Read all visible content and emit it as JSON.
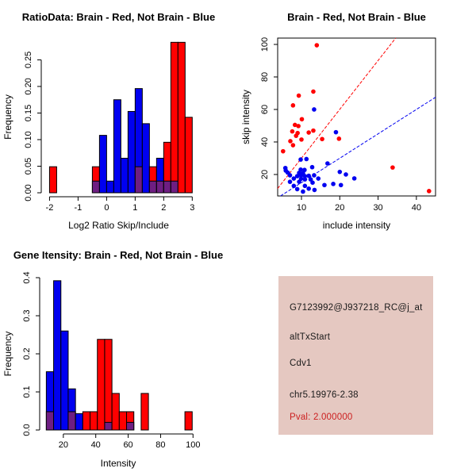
{
  "colors": {
    "red": "#FF0000",
    "blue": "#0000F0",
    "overlap_purple": "#6E1E82",
    "axis_black": "#000000",
    "info_box_bg": "#E5C8C1",
    "pval_red": "#CC2020"
  },
  "info_box": {
    "probe_id": "G7123992@J937218_RC@j_at",
    "event_type": "altTxStart",
    "gene": "Cdv1",
    "location": "chr5.19976-2.38",
    "pval_label": "Pval: 2.000000"
  },
  "chart_data": [
    {
      "type": "bar",
      "subtype": "overlaid-histogram",
      "title": "RatioData: Brain - Red, Not Brain - Blue",
      "xlabel": "Log2 Ratio Skip/Include",
      "ylabel": "Frequency",
      "xlim": [
        -2.29,
        3.13
      ],
      "ylim": [
        0,
        0.285
      ],
      "xticks": [
        -2,
        -1,
        0,
        1,
        2,
        3
      ],
      "xtick_labels": [
        "-2",
        "-1",
        "0",
        "1",
        "2",
        "3"
      ],
      "yticks": [
        0,
        0.05,
        0.1,
        0.15,
        0.2,
        0.25
      ],
      "ytick_labels": [
        "0.00",
        "0.05",
        "0.10",
        "0.15",
        "0.20",
        "0.25"
      ],
      "grid": false,
      "legend": "none (encoded in title: Brain=red, Not Brain=blue)",
      "bin_width": 0.25,
      "bars": [
        {
          "x0": -2.0,
          "x1": -1.75,
          "color": "red",
          "h": 0.049,
          "overlap": 0
        },
        {
          "x0": -0.5,
          "x1": -0.25,
          "color": "red",
          "h": 0.049,
          "overlap": 0.022
        },
        {
          "x0": -0.25,
          "x1": 0.0,
          "color": "blue",
          "h": 0.108,
          "overlap": 0
        },
        {
          "x0": 0.0,
          "x1": 0.25,
          "color": "blue",
          "h": 0.022,
          "overlap": 0
        },
        {
          "x0": 0.25,
          "x1": 0.5,
          "color": "blue",
          "h": 0.175,
          "overlap": 0
        },
        {
          "x0": 0.5,
          "x1": 0.75,
          "color": "blue",
          "h": 0.065,
          "overlap": 0
        },
        {
          "x0": 0.75,
          "x1": 1.0,
          "color": "blue",
          "h": 0.153,
          "overlap": 0
        },
        {
          "x0": 1.0,
          "x1": 1.25,
          "color": "blue",
          "h": 0.196,
          "overlap": 0.049
        },
        {
          "x0": 1.25,
          "x1": 1.5,
          "color": "blue",
          "h": 0.13,
          "overlap": 0
        },
        {
          "x0": 1.5,
          "x1": 1.75,
          "color": "red",
          "h": 0.049,
          "overlap": 0.022
        },
        {
          "x0": 1.75,
          "x1": 2.0,
          "color": "blue",
          "h": 0.065,
          "overlap": 0.022
        },
        {
          "x0": 2.0,
          "x1": 2.25,
          "color": "red",
          "h": 0.095,
          "overlap": 0.022
        },
        {
          "x0": 2.25,
          "x1": 2.5,
          "color": "red",
          "h": 0.283,
          "overlap": 0.022
        },
        {
          "x0": 2.5,
          "x1": 2.75,
          "color": "red",
          "h": 0.283,
          "overlap": 0
        },
        {
          "x0": 2.75,
          "x1": 3.0,
          "color": "red",
          "h": 0.142,
          "overlap": 0
        }
      ]
    },
    {
      "type": "scatter",
      "title": "Brain - Red, Not Brain - Blue",
      "xlabel": "include intensity",
      "ylabel": "skip intensity",
      "xlim": [
        3.79,
        45.0
      ],
      "ylim": [
        6.8,
        103.9
      ],
      "xticks": [
        10,
        20,
        30,
        40
      ],
      "xtick_labels": [
        "10",
        "20",
        "30",
        "40"
      ],
      "yticks": [
        20,
        40,
        60,
        80,
        100
      ],
      "ytick_labels": [
        "20",
        "40",
        "60",
        "80",
        "100"
      ],
      "grid": false,
      "box": true,
      "series": [
        {
          "name": "brain",
          "color": "red",
          "points": [
            [
              14.0,
              99.5
            ],
            [
              13.1,
              71.0
            ],
            [
              9.3,
              68.5
            ],
            [
              7.8,
              62.5
            ],
            [
              10.1,
              54.0
            ],
            [
              8.3,
              50.5
            ],
            [
              9.2,
              49.8
            ],
            [
              7.6,
              46.5
            ],
            [
              9.0,
              45.5
            ],
            [
              11.9,
              45.8
            ],
            [
              13.1,
              47.0
            ],
            [
              8.6,
              43.8
            ],
            [
              10.0,
              41.5
            ],
            [
              7.1,
              40.5
            ],
            [
              15.4,
              41.8
            ],
            [
              19.8,
              42.0
            ],
            [
              7.8,
              38.0
            ],
            [
              5.2,
              34.3
            ],
            [
              33.8,
              24.3
            ],
            [
              43.3,
              9.8
            ]
          ]
        },
        {
          "name": "not_brain",
          "color": "blue",
          "points": [
            [
              13.3,
              60.0
            ],
            [
              19.0,
              46.0
            ],
            [
              9.8,
              29.2
            ],
            [
              11.3,
              29.5
            ],
            [
              16.8,
              26.8
            ],
            [
              5.8,
              24.0
            ],
            [
              12.8,
              24.5
            ],
            [
              5.9,
              22.4
            ],
            [
              9.8,
              23.0
            ],
            [
              10.8,
              22.8
            ],
            [
              20.0,
              21.6
            ],
            [
              6.4,
              21.2
            ],
            [
              9.4,
              21.0
            ],
            [
              10.4,
              20.8
            ],
            [
              21.6,
              20.0
            ],
            [
              7.0,
              19.5
            ],
            [
              8.9,
              19.0
            ],
            [
              9.9,
              19.5
            ],
            [
              10.9,
              19.0
            ],
            [
              11.9,
              19.2
            ],
            [
              13.3,
              19.5
            ],
            [
              23.8,
              17.6
            ],
            [
              8.0,
              17.5
            ],
            [
              9.9,
              17.4
            ],
            [
              10.9,
              17.0
            ],
            [
              12.4,
              17.0
            ],
            [
              14.4,
              17.5
            ],
            [
              7.0,
              15.5
            ],
            [
              9.4,
              15.5
            ],
            [
              12.9,
              15.0
            ],
            [
              18.3,
              14.2
            ],
            [
              20.3,
              13.5
            ],
            [
              8.0,
              13.0
            ],
            [
              10.9,
              13.0
            ],
            [
              16.0,
              13.5
            ],
            [
              8.9,
              11.0
            ],
            [
              11.9,
              11.3
            ],
            [
              13.4,
              10.5
            ],
            [
              10.4,
              9.5
            ]
          ]
        }
      ],
      "lines": [
        {
          "name": "brain-fit",
          "color": "red",
          "slope": 3.0,
          "intercept": 0,
          "style": "dashed",
          "endpoints": [
            [
              3.79,
              11.4
            ],
            [
              34.6,
              103.9
            ]
          ]
        },
        {
          "name": "not-brain-fit",
          "color": "blue",
          "slope": 1.5,
          "intercept": 0,
          "style": "dashed",
          "endpoints": [
            [
              4.53,
              6.8
            ],
            [
              45.0,
              67.5
            ]
          ]
        }
      ]
    },
    {
      "type": "bar",
      "subtype": "overlaid-histogram",
      "title": "Gene Itensity: Brain - Red, Not Brain - Blue",
      "xlabel": "Intensity",
      "ylabel": "Frequency",
      "xlim": [
        5.4,
        102.3
      ],
      "ylim": [
        0,
        0.4
      ],
      "xticks": [
        20,
        40,
        60,
        80,
        100
      ],
      "xtick_labels": [
        "20",
        "40",
        "60",
        "80",
        "100"
      ],
      "yticks": [
        0,
        0.1,
        0.2,
        0.3,
        0.4
      ],
      "ytick_labels": [
        "0.0",
        "0.1",
        "0.2",
        "0.3",
        "0.4"
      ],
      "grid": false,
      "legend": "none (encoded in title: Brain=red, Not Brain=blue)",
      "bin_width": 4.5,
      "bars": [
        {
          "x0": 9.5,
          "x1": 14.0,
          "color": "blue",
          "h": 0.153,
          "overlap": 0.048
        },
        {
          "x0": 14.0,
          "x1": 18.5,
          "color": "blue",
          "h": 0.392,
          "overlap": 0
        },
        {
          "x0": 18.5,
          "x1": 23.0,
          "color": "blue",
          "h": 0.26,
          "overlap": 0
        },
        {
          "x0": 23.0,
          "x1": 27.5,
          "color": "blue",
          "h": 0.108,
          "overlap": 0.048
        },
        {
          "x0": 27.5,
          "x1": 32.0,
          "color": "blue",
          "h": 0.043,
          "overlap": 0
        },
        {
          "x0": 32.0,
          "x1": 36.5,
          "color": "red",
          "h": 0.048,
          "overlap": 0
        },
        {
          "x0": 36.5,
          "x1": 41.0,
          "color": "red",
          "h": 0.048,
          "overlap": 0
        },
        {
          "x0": 41.0,
          "x1": 45.5,
          "color": "red",
          "h": 0.238,
          "overlap": 0
        },
        {
          "x0": 45.5,
          "x1": 50.0,
          "color": "red",
          "h": 0.238,
          "overlap": 0.02
        },
        {
          "x0": 50.0,
          "x1": 54.5,
          "color": "red",
          "h": 0.096,
          "overlap": 0
        },
        {
          "x0": 54.5,
          "x1": 59.0,
          "color": "red",
          "h": 0.048,
          "overlap": 0
        },
        {
          "x0": 59.0,
          "x1": 63.5,
          "color": "red",
          "h": 0.048,
          "overlap": 0.02
        },
        {
          "x0": 68.0,
          "x1": 72.5,
          "color": "red",
          "h": 0.096,
          "overlap": 0
        },
        {
          "x0": 95.0,
          "x1": 99.5,
          "color": "red",
          "h": 0.048,
          "overlap": 0
        }
      ]
    }
  ]
}
